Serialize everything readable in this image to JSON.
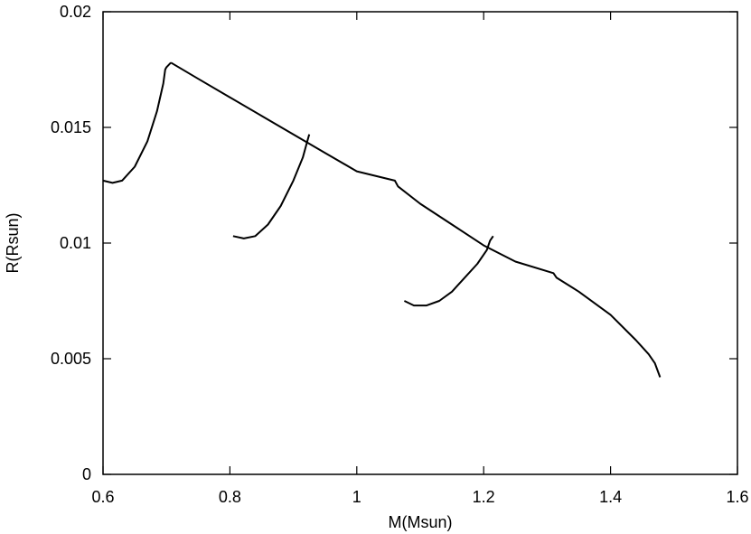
{
  "chart_data": {
    "type": "line",
    "title": "",
    "xlabel": "M(Msun)",
    "ylabel": "R(Rsun)",
    "xlim": [
      0.6,
      1.6
    ],
    "ylim": [
      0,
      0.02
    ],
    "x_ticks": [
      0.6,
      0.8,
      1,
      1.2,
      1.4,
      1.6
    ],
    "x_tick_labels": [
      "0.6",
      "0.8",
      "1",
      "1.2",
      "1.4",
      "1.6"
    ],
    "y_ticks": [
      0,
      0.005,
      0.01,
      0.015,
      0.02
    ],
    "y_tick_labels": [
      "0",
      "0.005",
      "0.01",
      "0.015",
      "0.02"
    ],
    "grid": false,
    "legend": "none",
    "line_color": "#000000",
    "series": [
      {
        "x": [
          0.707,
          0.75,
          0.8,
          0.85,
          0.9,
          0.95,
          1.0,
          1.06,
          1.065,
          1.1,
          1.15,
          1.2,
          1.25,
          1.31,
          1.315,
          1.35,
          1.4,
          1.44,
          1.46,
          1.47,
          1.478
        ],
        "y": [
          0.0178,
          0.0171,
          0.0163,
          0.0155,
          0.0147,
          0.0139,
          0.0131,
          0.0127,
          0.01245,
          0.0117,
          0.0108,
          0.0099,
          0.0092,
          0.0087,
          0.0085,
          0.0079,
          0.0069,
          0.0058,
          0.0052,
          0.0048,
          0.0042
        ]
      },
      {
        "x": [
          0.6,
          0.615,
          0.63,
          0.65,
          0.67,
          0.685,
          0.695,
          0.698,
          0.7,
          0.707
        ],
        "y": [
          0.0127,
          0.0126,
          0.0127,
          0.0133,
          0.0144,
          0.0157,
          0.0169,
          0.0175,
          0.0176,
          0.0178
        ]
      },
      {
        "x": [
          0.805,
          0.822,
          0.84,
          0.86,
          0.88,
          0.9,
          0.915,
          0.922,
          0.925
        ],
        "y": [
          0.0103,
          0.0102,
          0.0103,
          0.0108,
          0.0116,
          0.0127,
          0.0137,
          0.0144,
          0.0147
        ]
      },
      {
        "x": [
          1.075,
          1.09,
          1.11,
          1.13,
          1.15,
          1.17,
          1.19,
          1.205,
          1.21,
          1.215
        ],
        "y": [
          0.0075,
          0.0073,
          0.0073,
          0.0075,
          0.0079,
          0.0085,
          0.0091,
          0.0097,
          0.0101,
          0.0103
        ]
      }
    ]
  }
}
